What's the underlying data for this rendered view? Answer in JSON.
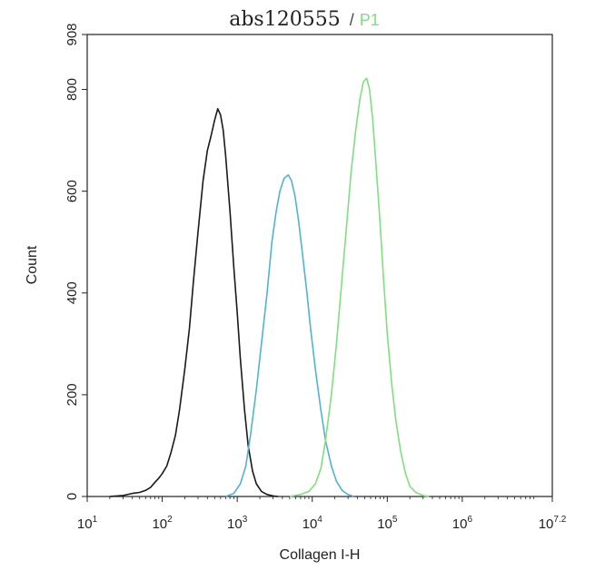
{
  "chart_data": {
    "type": "line",
    "title": "abs120555",
    "title_separator": "/",
    "gate_label": "P1",
    "xlabel": "Collagen I-H",
    "ylabel": "Count",
    "x_scale": "log",
    "xlim": [
      10,
      15848932
    ],
    "ylim": [
      0,
      908
    ],
    "x_ticks": [
      {
        "base": "10",
        "exp": "1",
        "value": 10
      },
      {
        "base": "10",
        "exp": "2",
        "value": 100
      },
      {
        "base": "10",
        "exp": "3",
        "value": 1000
      },
      {
        "base": "10",
        "exp": "4",
        "value": 10000
      },
      {
        "base": "10",
        "exp": "5",
        "value": 100000
      },
      {
        "base": "10",
        "exp": "6",
        "value": 1000000
      },
      {
        "base": "10",
        "exp": "7.2",
        "value": 15848932
      }
    ],
    "y_ticks": [
      {
        "label": "0",
        "value": 0
      },
      {
        "label": "200",
        "value": 200
      },
      {
        "label": "400",
        "value": 400
      },
      {
        "label": "600",
        "value": 600
      },
      {
        "label": "800",
        "value": 800
      },
      {
        "label": "908",
        "value": 908
      }
    ],
    "grid": false,
    "series": [
      {
        "color": "#1a1a1a",
        "points": [
          [
            20,
            0
          ],
          [
            30,
            2
          ],
          [
            40,
            6
          ],
          [
            50,
            8
          ],
          [
            60,
            12
          ],
          [
            70,
            18
          ],
          [
            80,
            28
          ],
          [
            90,
            36
          ],
          [
            100,
            45
          ],
          [
            115,
            60
          ],
          [
            130,
            85
          ],
          [
            150,
            120
          ],
          [
            170,
            170
          ],
          [
            200,
            250
          ],
          [
            230,
            330
          ],
          [
            260,
            420
          ],
          [
            300,
            520
          ],
          [
            350,
            620
          ],
          [
            400,
            680
          ],
          [
            450,
            710
          ],
          [
            500,
            740
          ],
          [
            550,
            762
          ],
          [
            600,
            750
          ],
          [
            650,
            720
          ],
          [
            700,
            670
          ],
          [
            800,
            560
          ],
          [
            900,
            450
          ],
          [
            1000,
            360
          ],
          [
            1100,
            270
          ],
          [
            1250,
            170
          ],
          [
            1400,
            100
          ],
          [
            1600,
            50
          ],
          [
            1800,
            25
          ],
          [
            2100,
            10
          ],
          [
            2500,
            4
          ],
          [
            3000,
            1
          ],
          [
            3500,
            0
          ]
        ]
      },
      {
        "color": "#4fb3d9",
        "points": [
          [
            700,
            0
          ],
          [
            900,
            6
          ],
          [
            1100,
            25
          ],
          [
            1300,
            60
          ],
          [
            1500,
            120
          ],
          [
            1800,
            210
          ],
          [
            2100,
            300
          ],
          [
            2500,
            400
          ],
          [
            2900,
            500
          ],
          [
            3300,
            560
          ],
          [
            3700,
            600
          ],
          [
            4200,
            625
          ],
          [
            4800,
            632
          ],
          [
            5300,
            620
          ],
          [
            5900,
            590
          ],
          [
            6600,
            540
          ],
          [
            7500,
            470
          ],
          [
            8500,
            400
          ],
          [
            9500,
            330
          ],
          [
            11000,
            250
          ],
          [
            13000,
            170
          ],
          [
            15000,
            110
          ],
          [
            18000,
            60
          ],
          [
            21000,
            30
          ],
          [
            25000,
            12
          ],
          [
            30000,
            4
          ],
          [
            36000,
            0
          ]
        ]
      },
      {
        "color": "#7ee07e",
        "points": [
          [
            5000,
            0
          ],
          [
            7000,
            4
          ],
          [
            9000,
            10
          ],
          [
            11000,
            25
          ],
          [
            13000,
            55
          ],
          [
            15000,
            110
          ],
          [
            18000,
            200
          ],
          [
            21000,
            300
          ],
          [
            25000,
            430
          ],
          [
            29000,
            540
          ],
          [
            33000,
            640
          ],
          [
            38000,
            720
          ],
          [
            43000,
            780
          ],
          [
            48000,
            815
          ],
          [
            53000,
            822
          ],
          [
            58000,
            800
          ],
          [
            64000,
            740
          ],
          [
            71000,
            650
          ],
          [
            80000,
            540
          ],
          [
            90000,
            420
          ],
          [
            100000,
            320
          ],
          [
            115000,
            220
          ],
          [
            130000,
            150
          ],
          [
            150000,
            90
          ],
          [
            175000,
            45
          ],
          [
            200000,
            20
          ],
          [
            240000,
            8
          ],
          [
            300000,
            2
          ],
          [
            360000,
            0
          ]
        ]
      }
    ]
  }
}
